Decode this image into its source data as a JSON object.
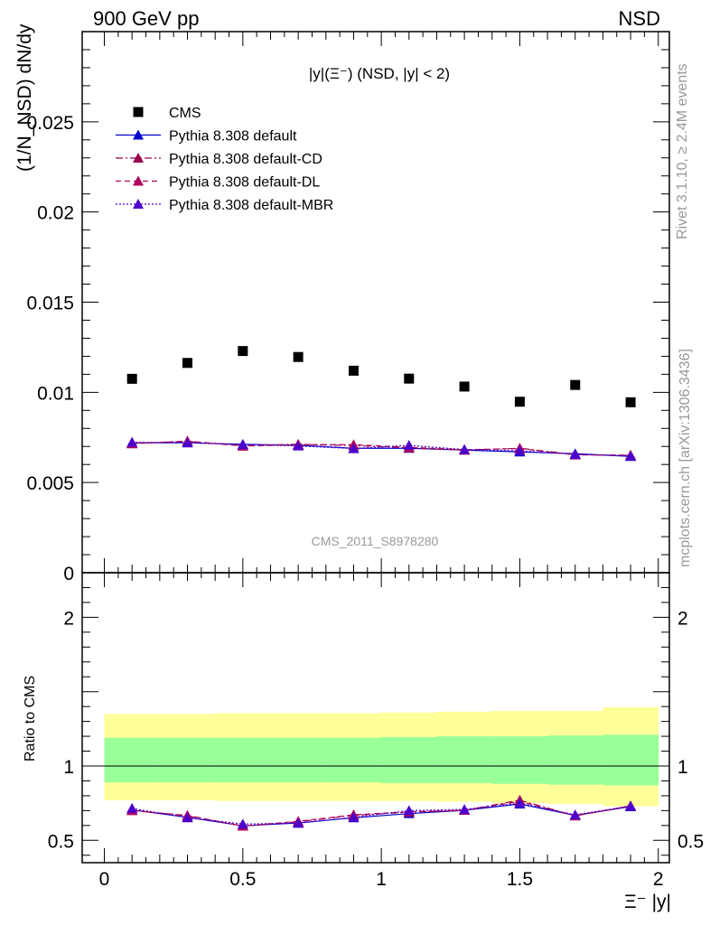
{
  "header": {
    "left": "900 GeV pp",
    "right": "NSD"
  },
  "side_texts": {
    "rivet": "Rivet 3.1.10, ≥ 2.4M events",
    "mcplots": "mcplots.cern.ch [arXiv:1306.3436]"
  },
  "watermark": "CMS_2011_S8978280",
  "colors": {
    "cms": "#000000",
    "default": "#0000cc",
    "cd": "#99004d",
    "dl": "#b3005c",
    "mbr": "#4d00cc",
    "band_outer": "#ffff99",
    "band_inner": "#99ff99"
  },
  "chart_data": [
    {
      "type": "scatter",
      "panel": "main",
      "title": "|y|(Ξ⁻) (NSD, |y| < 2)",
      "ylabel": "(1/N_NSD) dN/dy",
      "xlim": [
        -0.08,
        2.04
      ],
      "ylim": [
        0,
        0.03
      ],
      "yticks": [
        "0",
        "0.005",
        "0.01",
        "0.015",
        "0.02",
        "0.025"
      ],
      "x": [
        0.1,
        0.3,
        0.5,
        0.7,
        0.9,
        1.1,
        1.3,
        1.5,
        1.7,
        1.9
      ],
      "series": [
        {
          "name": "CMS",
          "style": "marker",
          "values": [
            0.01075,
            0.01163,
            0.01229,
            0.01196,
            0.0112,
            0.01076,
            0.01032,
            0.00948,
            0.01041,
            0.00945
          ]
        },
        {
          "name": "Pythia 8.308 default",
          "style": "solid",
          "values": [
            0.0072,
            0.00721,
            0.00712,
            0.00706,
            0.0069,
            0.0069,
            0.0068,
            0.0067,
            0.0066,
            0.00645
          ]
        },
        {
          "name": "Pythia 8.308 default-CD",
          "style": "dashdot",
          "values": [
            0.00718,
            0.00728,
            0.00705,
            0.00712,
            0.00705,
            0.00692,
            0.0068,
            0.0069,
            0.00655,
            0.0065
          ]
        },
        {
          "name": "Pythia 8.308 default-DL",
          "style": "dashed",
          "values": [
            0.00715,
            0.0073,
            0.00702,
            0.0071,
            0.0071,
            0.00695,
            0.00682,
            0.00688,
            0.00653,
            0.00652
          ]
        },
        {
          "name": "Pythia 8.308 default-MBR",
          "style": "dotted",
          "values": [
            0.00723,
            0.0072,
            0.0071,
            0.00703,
            0.00688,
            0.00706,
            0.00683,
            0.00676,
            0.00656,
            0.00647
          ]
        }
      ]
    },
    {
      "type": "line",
      "panel": "ratio",
      "ylabel": "Ratio to CMS",
      "xlabel": "Ξ⁻ |y|",
      "xlim": [
        -0.08,
        2.04
      ],
      "ylim": [
        0.35,
        2.3
      ],
      "xticks": [
        "0",
        "0.5",
        "1",
        "1.5",
        "2"
      ],
      "yticks": [
        "0.5",
        "1",
        "2"
      ],
      "x": [
        0.1,
        0.3,
        0.5,
        0.7,
        0.9,
        1.1,
        1.3,
        1.5,
        1.7,
        1.9
      ],
      "bands": {
        "edges": [
          0.0,
          0.2,
          0.4,
          0.6,
          0.8,
          1.0,
          1.2,
          1.4,
          1.6,
          1.8,
          2.0
        ],
        "outer_low": [
          0.77,
          0.77,
          0.765,
          0.765,
          0.765,
          0.765,
          0.76,
          0.75,
          0.745,
          0.73
        ],
        "outer_high": [
          1.35,
          1.35,
          1.355,
          1.355,
          1.355,
          1.36,
          1.365,
          1.37,
          1.37,
          1.395
        ],
        "inner_low": [
          0.89,
          0.89,
          0.89,
          0.89,
          0.89,
          0.885,
          0.885,
          0.88,
          0.875,
          0.87
        ],
        "inner_high": [
          1.19,
          1.19,
          1.19,
          1.19,
          1.19,
          1.195,
          1.2,
          1.2,
          1.205,
          1.21
        ]
      },
      "series": [
        {
          "name": "Pythia 8.308 default",
          "style": "solid",
          "values": [
            0.705,
            0.655,
            0.598,
            0.617,
            0.652,
            0.68,
            0.702,
            0.745,
            0.668,
            0.727
          ]
        },
        {
          "name": "Pythia 8.308 default-CD",
          "style": "dashdot",
          "values": [
            0.702,
            0.665,
            0.596,
            0.625,
            0.668,
            0.69,
            0.702,
            0.77,
            0.665,
            0.732
          ]
        },
        {
          "name": "Pythia 8.308 default-DL",
          "style": "dashed",
          "values": [
            0.7,
            0.668,
            0.596,
            0.628,
            0.672,
            0.692,
            0.702,
            0.762,
            0.665,
            0.732
          ]
        },
        {
          "name": "Pythia 8.308 default-MBR",
          "style": "dotted",
          "values": [
            0.715,
            0.652,
            0.61,
            0.615,
            0.655,
            0.7,
            0.708,
            0.75,
            0.672,
            0.73
          ]
        }
      ]
    }
  ]
}
